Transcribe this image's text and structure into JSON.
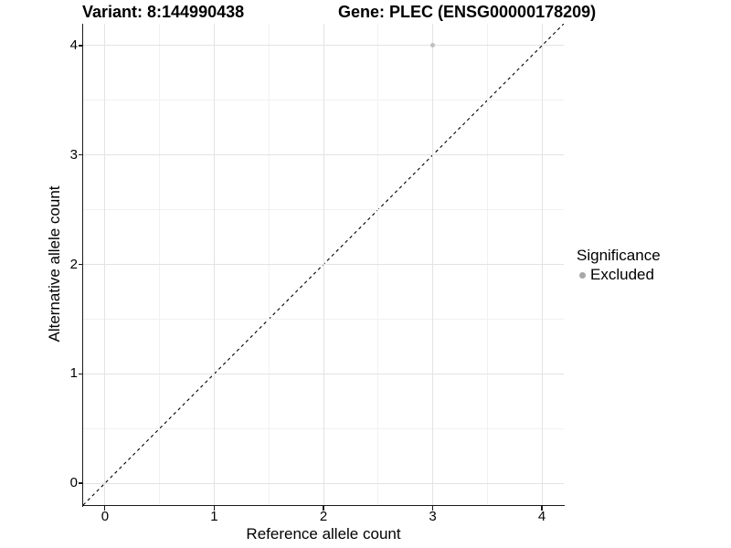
{
  "chart_data": {
    "type": "scatter",
    "title_left": "Variant: 8:144990438",
    "title_right": "Gene: PLEC (ENSG00000178209)",
    "xlabel": "Reference allele count",
    "ylabel": "Alternative allele count",
    "xlim": [
      -0.2,
      4.2
    ],
    "ylim": [
      -0.2,
      4.2
    ],
    "xticks": [
      0,
      1,
      2,
      3,
      4
    ],
    "yticks": [
      0,
      1,
      2,
      3,
      4
    ],
    "minor_grid_step": 0.5,
    "grid": true,
    "points": [
      {
        "x": 3,
        "y": 4,
        "series": "Excluded"
      }
    ],
    "abline": {
      "slope": 1,
      "intercept": 0,
      "style": "dashed"
    },
    "legend": {
      "title": "Significance",
      "position": "right",
      "items": [
        {
          "label": "Excluded",
          "color": "#bfbfbf"
        }
      ]
    }
  },
  "colors": {
    "background": "#ffffff",
    "grid_major": "#e3e3e3",
    "grid_minor": "#f1f1f1",
    "axis_line": "#1a1a1a",
    "text": "#000000",
    "abline": "#000000",
    "point": "#c0c0c0",
    "legend_dot": "#a8a8a8"
  }
}
